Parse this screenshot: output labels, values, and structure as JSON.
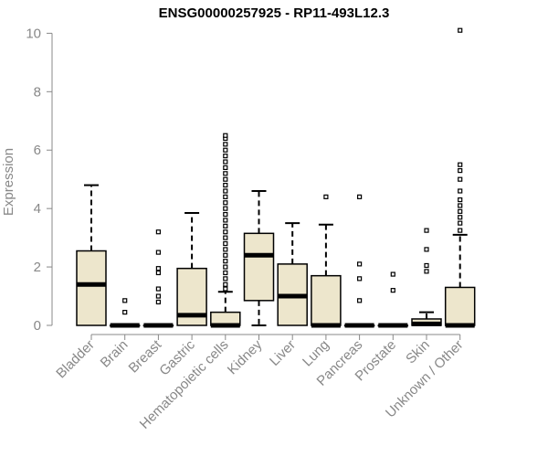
{
  "chart_data": {
    "type": "boxplot",
    "title": "ENSG00000257925 - RP11-493L12.3",
    "xlabel": "",
    "ylabel": "Expression",
    "ylim": [
      0,
      10.2
    ],
    "yticks": [
      0,
      2,
      4,
      6,
      8,
      10
    ],
    "grid": false,
    "legend": "none",
    "colors": {
      "box_fill": "#ede6cc",
      "stroke": "#000000",
      "axis_text": "#888888"
    },
    "categories": [
      "Bladder",
      "Brain",
      "Breast",
      "Gastric",
      "Hematopoietic cells",
      "Kidney",
      "Liver",
      "Lung",
      "Pancreas",
      "Prostate",
      "Skin",
      "Unknown / Other"
    ],
    "boxes": [
      {
        "q1": 0,
        "median": 1.4,
        "q3": 2.55,
        "whisker_low": 0,
        "whisker_high": 4.8,
        "outliers": []
      },
      {
        "q1": 0,
        "median": 0,
        "q3": 0,
        "whisker_low": 0,
        "whisker_high": 0,
        "outliers": [
          0.45,
          0.85
        ]
      },
      {
        "q1": 0,
        "median": 0,
        "q3": 0,
        "whisker_low": 0,
        "whisker_high": 0,
        "outliers": [
          0.8,
          1.0,
          1.25,
          1.8,
          1.95,
          2.5,
          3.2
        ]
      },
      {
        "q1": 0,
        "median": 0.35,
        "q3": 1.95,
        "whisker_low": 0,
        "whisker_high": 3.85,
        "outliers": []
      },
      {
        "q1": 0,
        "median": 0,
        "q3": 0.45,
        "whisker_low": 0,
        "whisker_high": 1.15,
        "outliers": [
          1.25,
          1.4,
          1.6,
          1.8,
          2.0,
          2.2,
          2.4,
          2.6,
          2.8,
          3.0,
          3.2,
          3.4,
          3.6,
          3.8,
          4.0,
          4.2,
          4.4,
          4.6,
          4.8,
          5.0,
          5.2,
          5.4,
          5.6,
          5.8,
          6.0,
          6.2,
          6.4,
          6.5
        ]
      },
      {
        "q1": 0.85,
        "median": 2.4,
        "q3": 3.15,
        "whisker_low": 0,
        "whisker_high": 4.6,
        "outliers": []
      },
      {
        "q1": 0,
        "median": 1.0,
        "q3": 2.1,
        "whisker_low": 0,
        "whisker_high": 3.5,
        "outliers": []
      },
      {
        "q1": 0,
        "median": 0,
        "q3": 1.7,
        "whisker_low": 0,
        "whisker_high": 3.45,
        "outliers": [
          4.4
        ]
      },
      {
        "q1": 0,
        "median": 0,
        "q3": 0,
        "whisker_low": 0,
        "whisker_high": 0,
        "outliers": [
          0.85,
          1.6,
          2.1,
          4.4
        ]
      },
      {
        "q1": 0,
        "median": 0,
        "q3": 0,
        "whisker_low": 0,
        "whisker_high": 0,
        "outliers": [
          1.2,
          1.75
        ]
      },
      {
        "q1": 0,
        "median": 0.05,
        "q3": 0.22,
        "whisker_low": 0,
        "whisker_high": 0.45,
        "outliers": [
          1.85,
          2.05,
          2.6,
          3.25
        ]
      },
      {
        "q1": 0,
        "median": 0,
        "q3": 1.3,
        "whisker_low": 0,
        "whisker_high": 3.1,
        "outliers": [
          3.25,
          3.5,
          3.7,
          3.9,
          4.1,
          4.3,
          4.6,
          5.0,
          5.3,
          5.5,
          10.1
        ]
      }
    ]
  }
}
